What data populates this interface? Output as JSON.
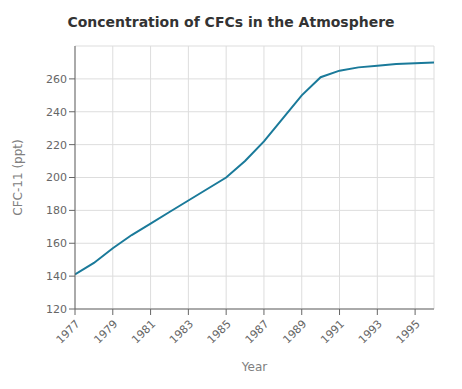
{
  "chart_data": {
    "type": "line",
    "title": "Concentration of CFCs in the Atmosphere",
    "xlabel": "Year",
    "ylabel": "CFC-11 (ppt)",
    "x": [
      1977,
      1978,
      1979,
      1980,
      1981,
      1982,
      1983,
      1984,
      1985,
      1986,
      1987,
      1988,
      1989,
      1990,
      1991,
      1992,
      1993,
      1994,
      1995,
      1996
    ],
    "values": [
      141,
      148,
      157,
      165,
      172,
      179,
      186,
      193,
      200,
      210,
      222,
      236,
      250,
      261,
      265,
      267,
      268,
      269,
      269.5,
      270
    ],
    "color": "#1a7a9a",
    "xlim": [
      1977,
      1996
    ],
    "ylim": [
      120,
      280
    ],
    "xticks": [
      1977,
      1979,
      1981,
      1983,
      1985,
      1987,
      1989,
      1991,
      1993,
      1995
    ],
    "yticks": [
      120,
      140,
      160,
      180,
      200,
      220,
      240,
      260
    ],
    "grid": true
  }
}
